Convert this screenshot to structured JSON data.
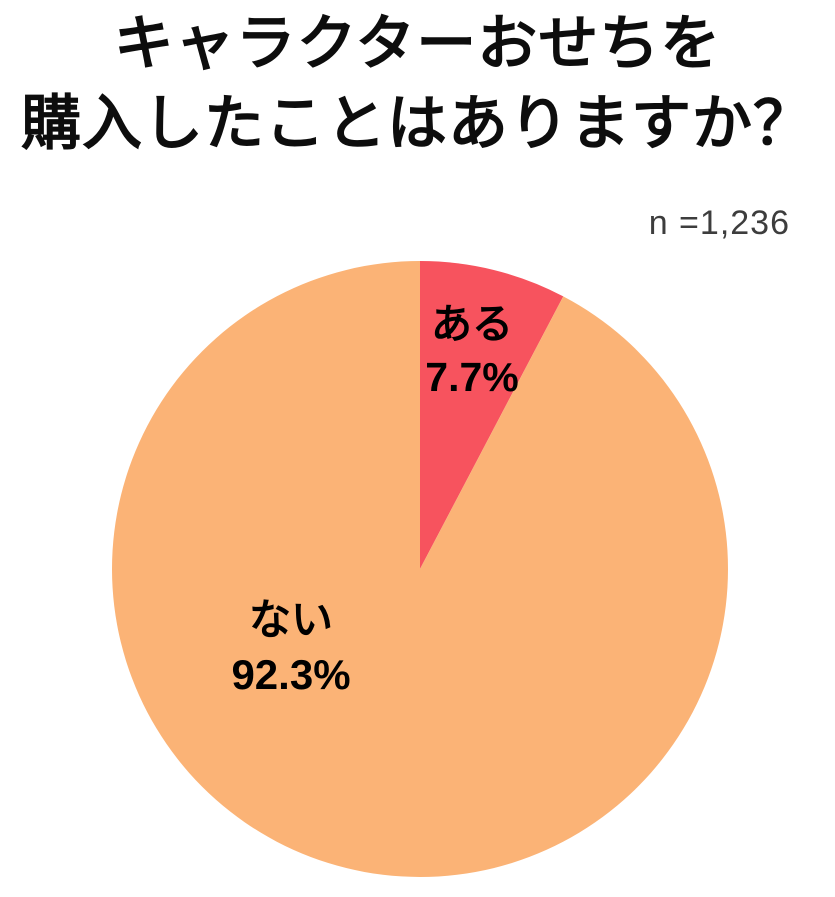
{
  "header": {
    "title_lines": [
      "キャラクターおせちを",
      "購入したことはありますか？"
    ],
    "sample_size_label": "n =1,236"
  },
  "chart_data": {
    "type": "pie",
    "title": "キャラクターおせちを購入したことはありますか？",
    "sample_size_text": "n =1,236",
    "sample_size_n": 1236,
    "categories": [
      "ある",
      "ない"
    ],
    "values": [
      7.7,
      92.3
    ],
    "unit": "%",
    "colors": [
      "#F7535E",
      "#FBB376"
    ],
    "start_angle_deg": 0,
    "direction": "clockwise",
    "legend": "none",
    "slice_labels": [
      {
        "name": "ある",
        "value_text": "7.7%"
      },
      {
        "name": "ない",
        "value_text": "92.3%"
      }
    ]
  }
}
